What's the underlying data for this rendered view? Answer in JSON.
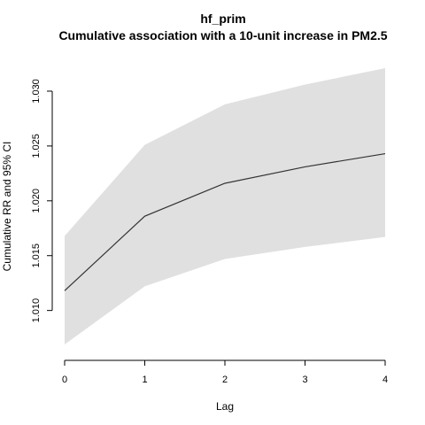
{
  "chart_data": {
    "type": "line",
    "title": "hf_prim",
    "subtitle": "Cumulative association with a 10-unit increase in PM2.5",
    "xlabel": "Lag",
    "ylabel": "Cumulative RR and 95% CI",
    "x": [
      0,
      1,
      2,
      3,
      4
    ],
    "series": [
      {
        "values": [
          1.0118,
          1.0186,
          1.0216,
          1.0231,
          1.0243
        ],
        "lower": [
          1.0069,
          1.0122,
          1.0147,
          1.0158,
          1.0167
        ],
        "upper": [
          1.0168,
          1.0251,
          1.0288,
          1.0306,
          1.0321
        ]
      }
    ],
    "xlim": [
      0,
      4
    ],
    "ylim": [
      1.0065,
      1.0325
    ],
    "x_ticks": [
      "0",
      "1",
      "2",
      "3",
      "4"
    ],
    "y_ticks": [
      "1.010",
      "1.015",
      "1.020",
      "1.025",
      "1.030"
    ],
    "grid": false,
    "band_color": "#e0e0e0",
    "line_color": "#333333"
  }
}
